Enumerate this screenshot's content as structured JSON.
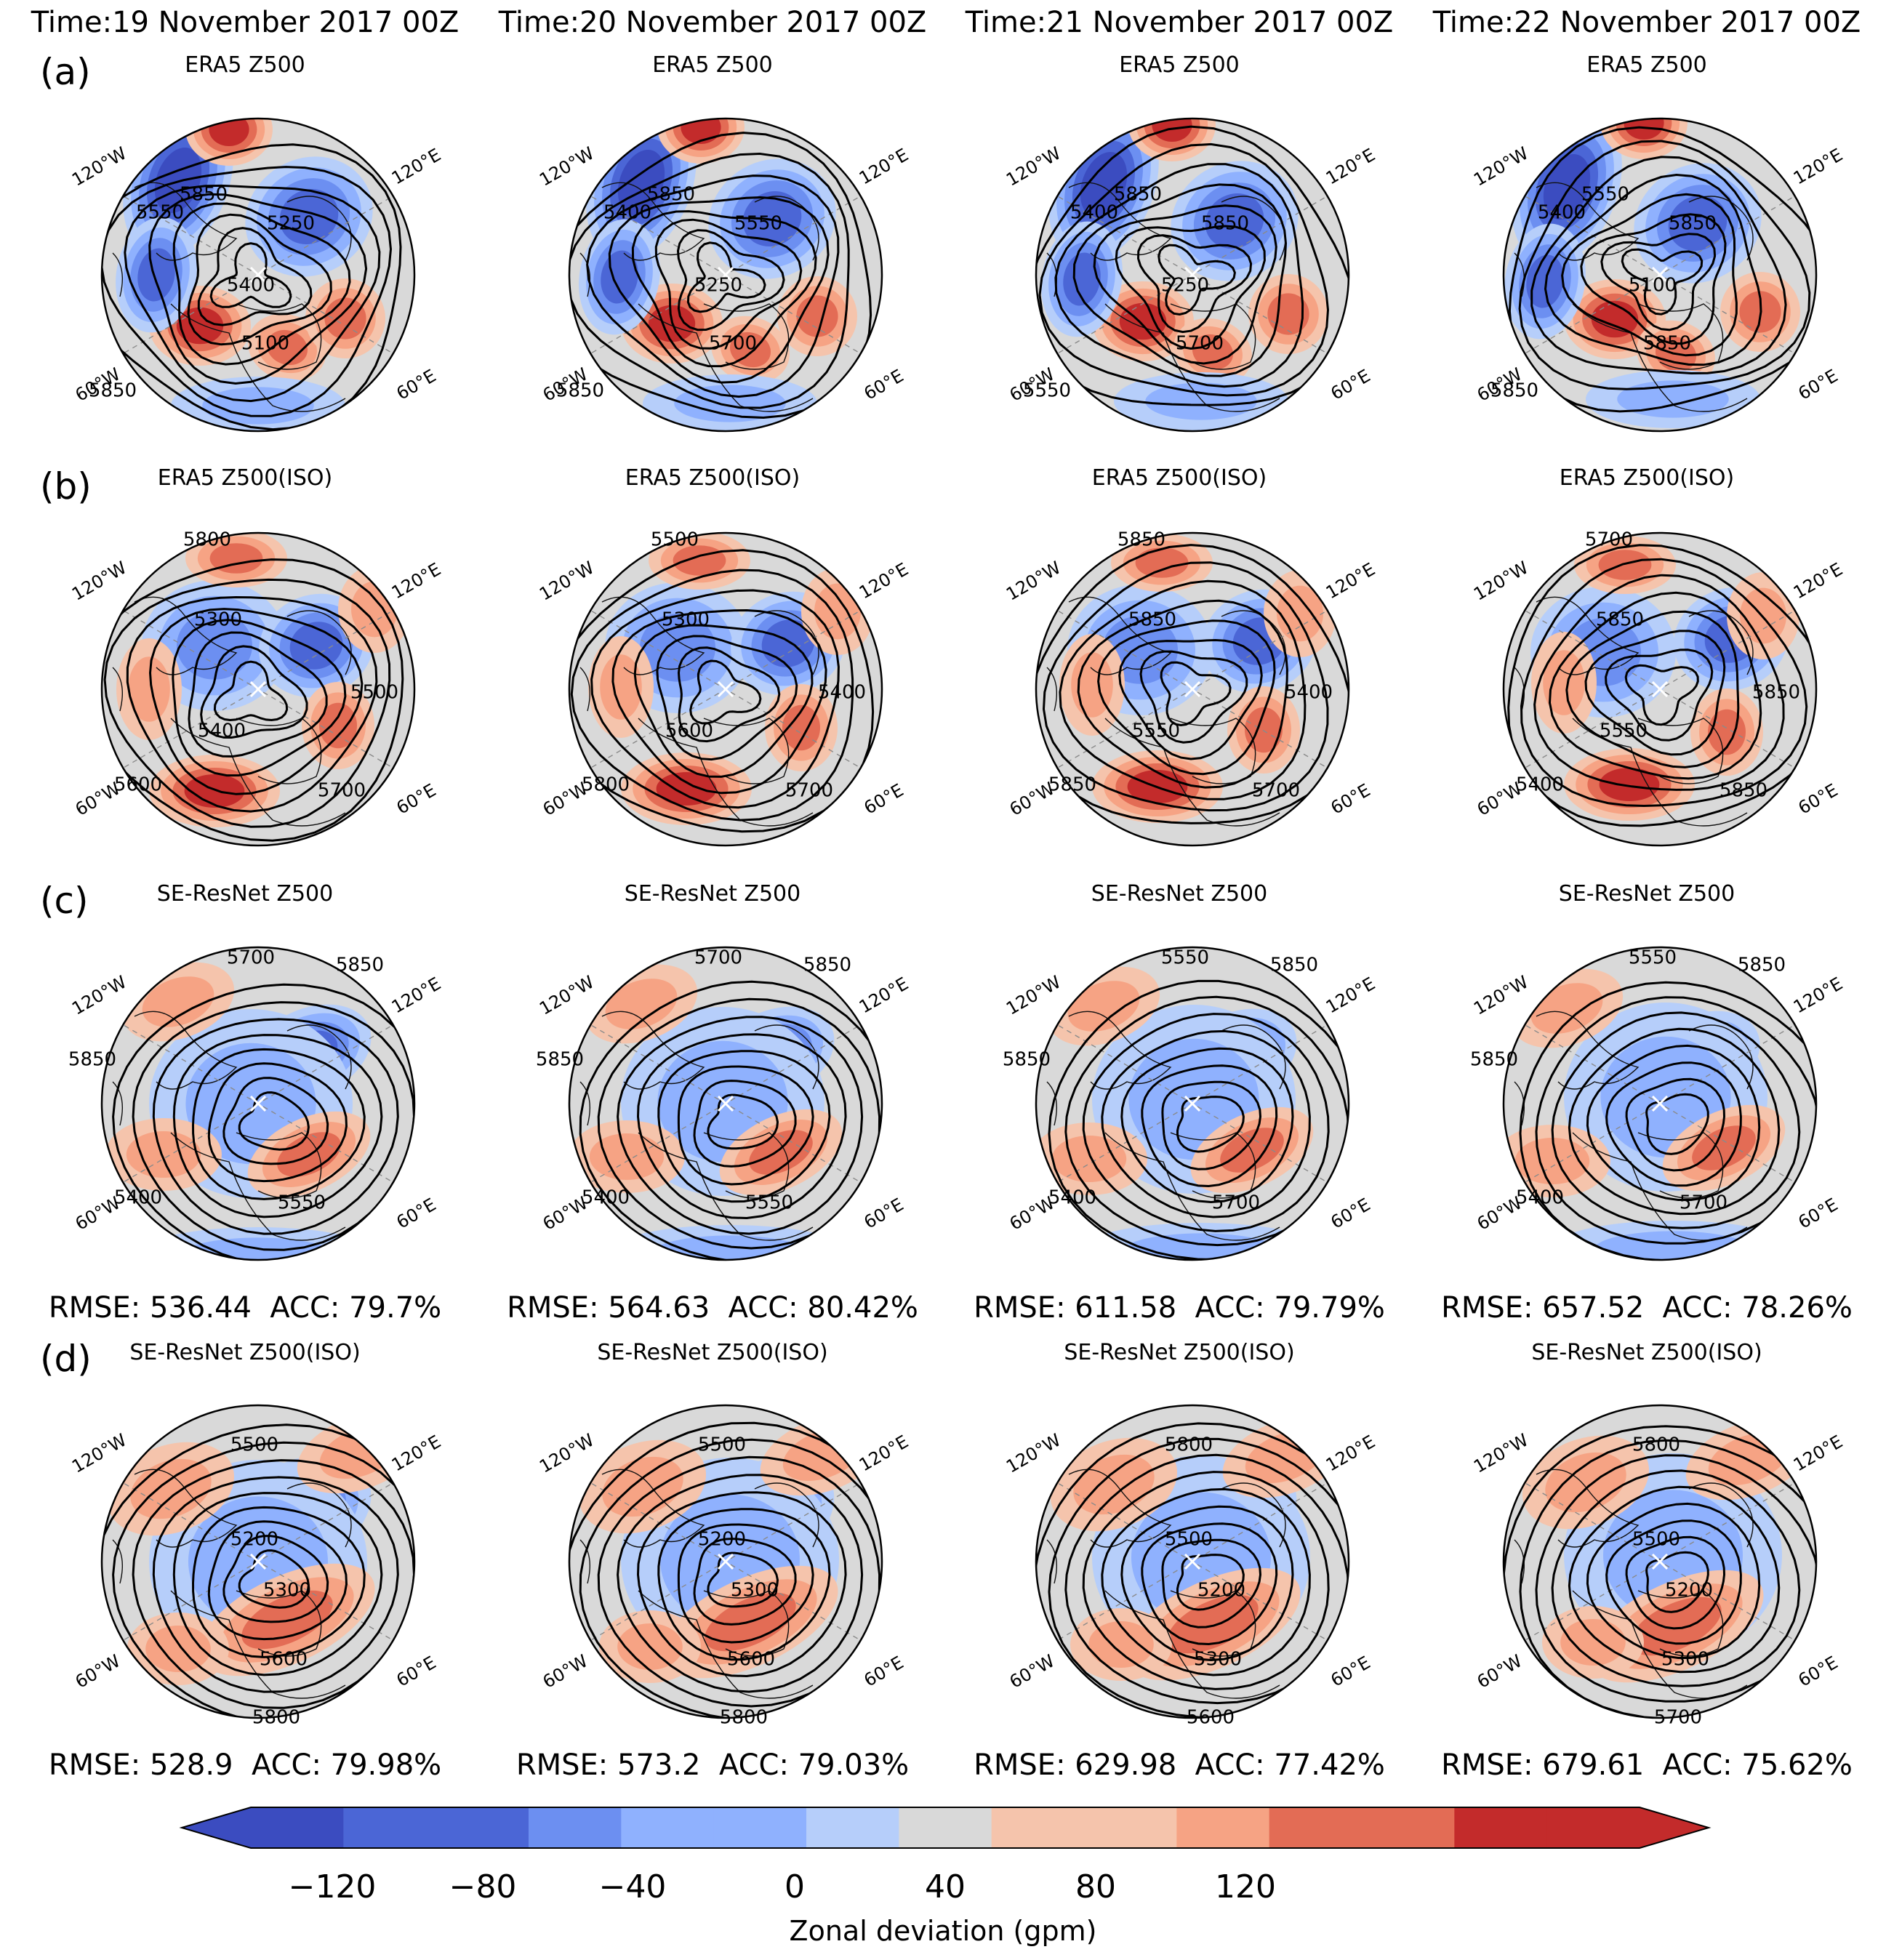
{
  "time_titles": [
    "Time:19 November 2017 00Z",
    "Time:20 November 2017 00Z",
    "Time:21 November 2017 00Z",
    "Time:22 November 2017 00Z"
  ],
  "rows": [
    {
      "letter": "(a)",
      "title": "ERA5 Z500",
      "scores": []
    },
    {
      "letter": "(b)",
      "title": "ERA5 Z500(ISO)",
      "scores": []
    },
    {
      "letter": "(c)",
      "title": "SE-ResNet Z500",
      "scores": [
        {
          "rmse": "RMSE: 536.44",
          "acc": "ACC: 79.7%"
        },
        {
          "rmse": "RMSE: 564.63",
          "acc": "ACC: 80.42%"
        },
        {
          "rmse": "RMSE: 611.58",
          "acc": "ACC: 79.79%"
        },
        {
          "rmse": "RMSE: 657.52",
          "acc": "ACC: 78.26%"
        }
      ]
    },
    {
      "letter": "(d)",
      "title": "SE-ResNet Z500(ISO)",
      "scores": [
        {
          "rmse": "RMSE: 528.9",
          "acc": "ACC: 79.98%"
        },
        {
          "rmse": "RMSE: 573.2",
          "acc": "ACC: 79.03%"
        },
        {
          "rmse": "RMSE: 629.98",
          "acc": "ACC: 77.42%"
        },
        {
          "rmse": "RMSE: 679.61",
          "acc": "ACC: 75.62%"
        }
      ]
    }
  ],
  "longitude_labels": {
    "tl": "120°W",
    "tr": "120°E",
    "bl": "60°W",
    "br": "60°E"
  },
  "contour_labels": {
    "a": [
      [
        "5850",
        "5550",
        "5400",
        "5250",
        "5850",
        "5100"
      ],
      [
        "5850",
        "5400",
        "5250",
        "5550",
        "5850",
        "5700"
      ],
      [
        "5850",
        "5400",
        "5250",
        "5850",
        "5550",
        "5700"
      ],
      [
        "5550",
        "5400",
        "5100",
        "5850",
        "5850",
        "5850"
      ]
    ],
    "b": [
      [
        "5800",
        "5300",
        "5500",
        "5400",
        "5600",
        "5700"
      ],
      [
        "5500",
        "5300",
        "5400",
        "5600",
        "5800",
        "5700"
      ],
      [
        "5850",
        "5850",
        "5400",
        "5550",
        "5850",
        "5700"
      ],
      [
        "5700",
        "5850",
        "5850",
        "5550",
        "5400",
        "5850"
      ]
    ],
    "c": [
      [
        "5700",
        "5850",
        "5400",
        "5550",
        "5850"
      ],
      [
        "5700",
        "5850",
        "5400",
        "5550",
        "5850"
      ],
      [
        "5550",
        "5850",
        "5400",
        "5700",
        "5850"
      ],
      [
        "5550",
        "5850",
        "5400",
        "5700",
        "5850"
      ]
    ],
    "d": [
      [
        "5500",
        "5200",
        "5300",
        "5600",
        "5800"
      ],
      [
        "5500",
        "5200",
        "5300",
        "5600",
        "5800"
      ],
      [
        "5800",
        "5500",
        "5200",
        "5300",
        "5600"
      ],
      [
        "5800",
        "5500",
        "5200",
        "5300",
        "5700"
      ]
    ]
  },
  "colorbar": {
    "label": "Zonal deviation (gpm)",
    "ticks": [
      "−120",
      "−80",
      "−40",
      "0",
      "40",
      "80",
      "120"
    ],
    "levels": [
      -150,
      -130,
      -110,
      -90,
      -70,
      -50,
      -30,
      -10,
      10,
      30,
      50,
      70,
      90,
      110,
      130,
      150
    ],
    "colors": [
      "#3b4cc0",
      "#4b66d6",
      "#6c8ff1",
      "#8fb1fe",
      "#b6cefa",
      "#d9d9d9",
      "#f5c4ac",
      "#f6a384",
      "#e36c55",
      "#c32b2b"
    ],
    "extend": "both"
  }
}
